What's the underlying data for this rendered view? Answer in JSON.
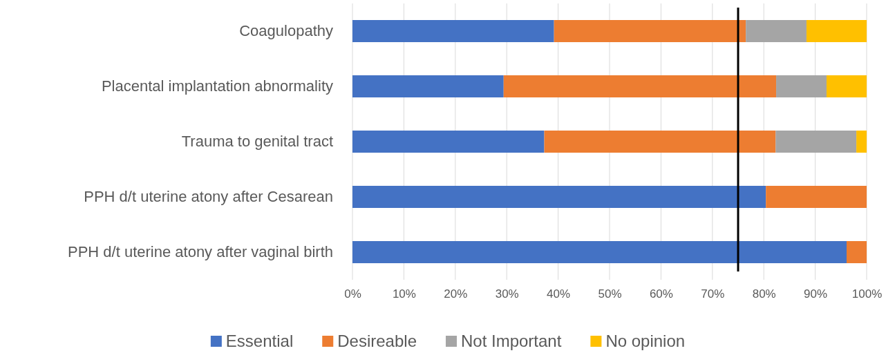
{
  "chart_data": {
    "type": "bar",
    "orientation": "horizontal",
    "stacked": true,
    "categories": [
      "Coagulopathy",
      "Placental implantation abnormality",
      "Trauma to genital tract",
      "PPH d/t uterine atony after Cesarean ",
      "PPH d/t uterine atony after vaginal birth"
    ],
    "series": [
      {
        "name": "Essential",
        "color": "#4472c4",
        "values": [
          39.2,
          29.4,
          37.3,
          80.4,
          96.1
        ]
      },
      {
        "name": "Desireable",
        "color": "#ed7d31",
        "values": [
          37.3,
          53.0,
          45.0,
          19.6,
          3.9
        ]
      },
      {
        "name": "Not Important",
        "color": "#a5a5a5",
        "values": [
          11.8,
          9.8,
          15.7,
          0,
          0
        ]
      },
      {
        "name": "No opinion",
        "color": "#ffc000",
        "values": [
          11.7,
          7.8,
          2.0,
          0,
          0
        ]
      }
    ],
    "xlim": [
      0,
      100
    ],
    "xticks": [
      {
        "value": 0,
        "label": "0%"
      },
      {
        "value": 10,
        "label": "10%"
      },
      {
        "value": 20,
        "label": "20%"
      },
      {
        "value": 30,
        "label": "30%"
      },
      {
        "value": 40,
        "label": "40%"
      },
      {
        "value": 50,
        "label": "50%"
      },
      {
        "value": 60,
        "label": "60%"
      },
      {
        "value": 70,
        "label": "70%"
      },
      {
        "value": 80,
        "label": "80%"
      },
      {
        "value": 90,
        "label": "90%"
      },
      {
        "value": 100,
        "label": "100%"
      }
    ],
    "grid": "x",
    "legend": "bottom",
    "ref_lines": [
      {
        "axis": "x",
        "value": 75,
        "color": "#000000"
      }
    ]
  }
}
